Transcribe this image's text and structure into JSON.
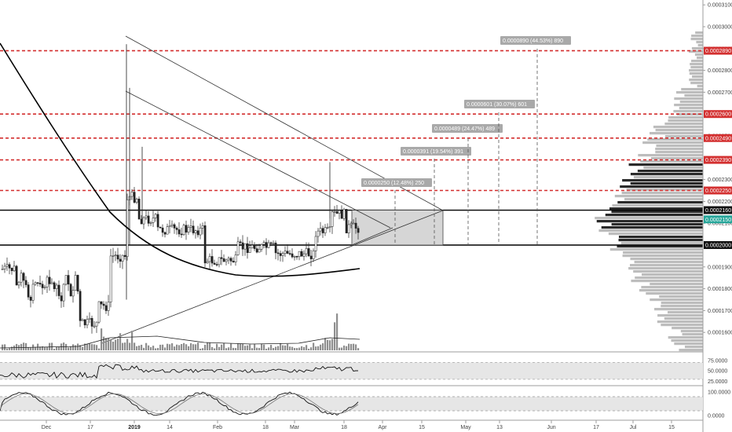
{
  "chart_data": {
    "type": "candlestick",
    "price_axis": {
      "min": 0.000155,
      "max": 0.000315,
      "ticks": [
        "0.0003100",
        "0.0003000",
        "0.0002900",
        "0.0002800",
        "0.0002700",
        "0.0002500",
        "0.0002300",
        "0.0002200",
        "0.0002100",
        "0.0001900",
        "0.0001800",
        "0.0001700",
        "0.0001600"
      ]
    },
    "date_axis": {
      "labels": [
        "Dec",
        "17",
        "2019",
        "14",
        "Feb",
        "18",
        "Mar",
        "18",
        "Apr",
        "15",
        "May",
        "13",
        "Jun",
        "17",
        "Jul",
        "15"
      ],
      "bold": [
        "2019"
      ]
    },
    "horizontal_levels": [
      {
        "label": "0.0002890",
        "value": 0.000289,
        "style": "dashed-red"
      },
      {
        "label": "0.0002600",
        "value": 0.00026,
        "style": "dashed-red"
      },
      {
        "label": "0.0002490",
        "value": 0.000249,
        "style": "dashed-red"
      },
      {
        "label": "0.0002390",
        "value": 0.000239,
        "style": "dashed-red"
      },
      {
        "label": "0.0002250",
        "value": 0.000225,
        "style": "dashed-red"
      },
      {
        "label": "0.0002160",
        "value": 0.000216,
        "style": "solid-black"
      },
      {
        "label": "0.0002000",
        "value": 0.0002,
        "style": "solid-black"
      }
    ],
    "current_price_label": "0.0002150",
    "target_annotations": [
      {
        "text": "0.0000250 (12.48%) 250"
      },
      {
        "text": "0.0000391 (19.54%) 391"
      },
      {
        "text": "0.0000489 (24.47%) 489"
      },
      {
        "text": "0.0000601 (30.07%) 601"
      },
      {
        "text": "0.0000890 (44.53%) 890"
      }
    ],
    "rsi": {
      "ticks": [
        "75.0000",
        "50.0000",
        "25.0000"
      ],
      "upper": 70,
      "lower": 30
    },
    "stoch": {
      "ticks": [
        "100.0000",
        "0.0000"
      ],
      "upper": 80,
      "lower": 20
    }
  }
}
